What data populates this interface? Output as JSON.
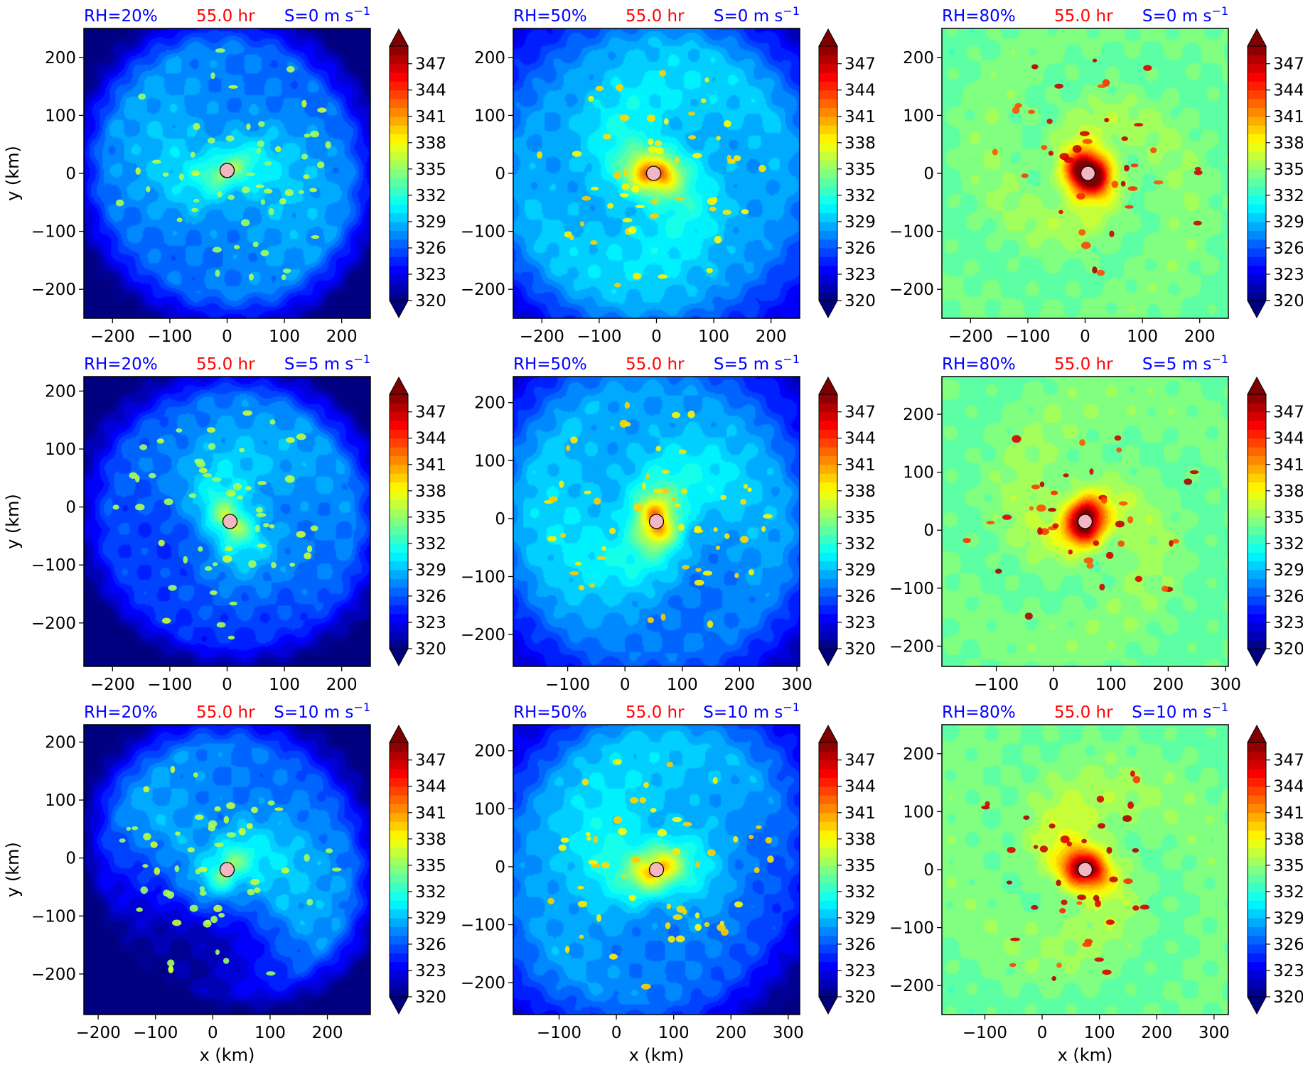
{
  "figure": {
    "rows": [
      "S=0 m s⁻¹",
      "S=5 m s⁻¹",
      "S=10 m s⁻¹"
    ],
    "cols": [
      "RH=20%",
      "RH=50%",
      "RH=80%"
    ],
    "time": "55.0 hr",
    "xlabel": "x (km)",
    "ylabel": "y (km)",
    "colorbar_ticks": [
      "347",
      "344",
      "341",
      "338",
      "335",
      "332",
      "329",
      "326",
      "323",
      "320"
    ]
  },
  "colors": {
    "label_blue": "#0000ff",
    "label_red": "#ff0000",
    "center_marker": "#f4b6c2"
  },
  "chart_data": [
    {
      "type": "heatmap",
      "rh": "RH=20%",
      "time": "55.0 hr",
      "shear": "S=0 m s⁻¹",
      "theme": "dry",
      "strength": 0.55,
      "arms": 2.0,
      "asym": 0,
      "xticks": [
        -200,
        -100,
        0,
        100,
        200
      ],
      "yticks": [
        200,
        100,
        0,
        -100,
        -200
      ],
      "xlim": [
        -250,
        250
      ],
      "ylim": [
        -250,
        250
      ],
      "center": [
        0,
        5
      ],
      "ylabel": "y (km)",
      "xlabel": "",
      "colorbar": {
        "vmin": 320,
        "vmax": 349,
        "ticks": [
          320,
          323,
          326,
          329,
          332,
          335,
          338,
          341,
          344,
          347
        ],
        "extend": "both"
      }
    },
    {
      "type": "heatmap",
      "rh": "RH=50%",
      "time": "55.0 hr",
      "shear": "S=0 m s⁻¹",
      "theme": "mid",
      "strength": 1.0,
      "arms": 1.2,
      "asym": 0,
      "xticks": [
        -200,
        -100,
        0,
        100,
        200
      ],
      "yticks": [
        200,
        100,
        0,
        -100,
        -200
      ],
      "xlim": [
        -250,
        250
      ],
      "ylim": [
        -250,
        250
      ],
      "center": [
        -5,
        0
      ],
      "ylabel": "",
      "xlabel": "",
      "colorbar": {
        "vmin": 320,
        "vmax": 349,
        "ticks": [
          320,
          323,
          326,
          329,
          332,
          335,
          338,
          341,
          344,
          347
        ],
        "extend": "both"
      }
    },
    {
      "type": "heatmap",
      "rh": "RH=80%",
      "time": "55.0 hr",
      "shear": "S=0 m s⁻¹",
      "theme": "moist",
      "strength": 1.6,
      "arms": 0.8,
      "asym": 0,
      "xticks": [
        -200,
        -100,
        0,
        100,
        200
      ],
      "yticks": [
        200,
        100,
        0,
        -100,
        -200
      ],
      "xlim": [
        -250,
        250
      ],
      "ylim": [
        -250,
        250
      ],
      "center": [
        5,
        0
      ],
      "ylabel": "",
      "xlabel": "",
      "colorbar": {
        "vmin": 320,
        "vmax": 349,
        "ticks": [
          320,
          323,
          326,
          329,
          332,
          335,
          338,
          341,
          344,
          347
        ],
        "extend": "both"
      }
    },
    {
      "type": "heatmap",
      "rh": "RH=20%",
      "time": "55.0 hr",
      "shear": "S=5 m s⁻¹",
      "theme": "dry",
      "strength": 0.7,
      "arms": 1.6,
      "asym": 0.5,
      "xticks": [
        -200,
        -100,
        0,
        100,
        200
      ],
      "yticks": [
        200,
        100,
        0,
        -100,
        -200
      ],
      "xlim": [
        -250,
        250
      ],
      "ylim": [
        -275,
        225
      ],
      "center": [
        5,
        -25
      ],
      "ylabel": "y (km)",
      "xlabel": "",
      "colorbar": {
        "vmin": 320,
        "vmax": 349,
        "ticks": [
          320,
          323,
          326,
          329,
          332,
          335,
          338,
          341,
          344,
          347
        ],
        "extend": "both"
      }
    },
    {
      "type": "heatmap",
      "rh": "RH=50%",
      "time": "55.0 hr",
      "shear": "S=5 m s⁻¹",
      "theme": "mid",
      "strength": 0.9,
      "arms": 1.3,
      "asym": 0.4,
      "xticks": [
        -100,
        0,
        100,
        200,
        300
      ],
      "yticks": [
        200,
        100,
        0,
        -100,
        -200
      ],
      "xlim": [
        -195,
        305
      ],
      "ylim": [
        -255,
        245
      ],
      "center": [
        55,
        -5
      ],
      "ylabel": "",
      "xlabel": "",
      "colorbar": {
        "vmin": 320,
        "vmax": 349,
        "ticks": [
          320,
          323,
          326,
          329,
          332,
          335,
          338,
          341,
          344,
          347
        ],
        "extend": "both"
      }
    },
    {
      "type": "heatmap",
      "rh": "RH=80%",
      "time": "55.0 hr",
      "shear": "S=5 m s⁻¹",
      "theme": "moist",
      "strength": 1.3,
      "arms": 0.9,
      "asym": 0.2,
      "xticks": [
        -100,
        0,
        100,
        200,
        300
      ],
      "yticks": [
        200,
        100,
        0,
        -100,
        -200
      ],
      "xlim": [
        -195,
        305
      ],
      "ylim": [
        -235,
        265
      ],
      "center": [
        55,
        15
      ],
      "ylabel": "",
      "xlabel": "",
      "colorbar": {
        "vmin": 320,
        "vmax": 349,
        "ticks": [
          320,
          323,
          326,
          329,
          332,
          335,
          338,
          341,
          344,
          347
        ],
        "extend": "both"
      }
    },
    {
      "type": "heatmap",
      "rh": "RH=20%",
      "time": "55.0 hr",
      "shear": "S=10 m s⁻¹",
      "theme": "dry",
      "strength": 0.5,
      "arms": 1.5,
      "asym": 1.0,
      "xticks": [
        -200,
        -100,
        0,
        100,
        200
      ],
      "yticks": [
        200,
        100,
        0,
        -100,
        -200
      ],
      "xlim": [
        -225,
        275
      ],
      "ylim": [
        -270,
        230
      ],
      "center": [
        25,
        -20
      ],
      "ylabel": "y (km)",
      "xlabel": "x (km)",
      "colorbar": {
        "vmin": 320,
        "vmax": 349,
        "ticks": [
          320,
          323,
          326,
          329,
          332,
          335,
          338,
          341,
          344,
          347
        ],
        "extend": "both"
      }
    },
    {
      "type": "heatmap",
      "rh": "RH=50%",
      "time": "55.0 hr",
      "shear": "S=10 m s⁻¹",
      "theme": "mid",
      "strength": 0.75,
      "arms": 1.4,
      "asym": 0.8,
      "xticks": [
        -100,
        0,
        100,
        200,
        300
      ],
      "yticks": [
        200,
        100,
        0,
        -100,
        -200
      ],
      "xlim": [
        -180,
        320
      ],
      "ylim": [
        -255,
        245
      ],
      "center": [
        70,
        -5
      ],
      "ylabel": "",
      "xlabel": "x (km)",
      "colorbar": {
        "vmin": 320,
        "vmax": 349,
        "ticks": [
          320,
          323,
          326,
          329,
          332,
          335,
          338,
          341,
          344,
          347
        ],
        "extend": "both"
      }
    },
    {
      "type": "heatmap",
      "rh": "RH=80%",
      "time": "55.0 hr",
      "shear": "S=10 m s⁻¹",
      "theme": "moist",
      "strength": 1.1,
      "arms": 1.0,
      "asym": 0.7,
      "xticks": [
        -100,
        0,
        100,
        200,
        300
      ],
      "yticks": [
        200,
        100,
        0,
        -100,
        -200
      ],
      "xlim": [
        -175,
        325
      ],
      "ylim": [
        -250,
        250
      ],
      "center": [
        75,
        0
      ],
      "ylabel": "",
      "xlabel": "x (km)",
      "colorbar": {
        "vmin": 320,
        "vmax": 349,
        "ticks": [
          320,
          323,
          326,
          329,
          332,
          335,
          338,
          341,
          344,
          347
        ],
        "extend": "both"
      }
    }
  ]
}
